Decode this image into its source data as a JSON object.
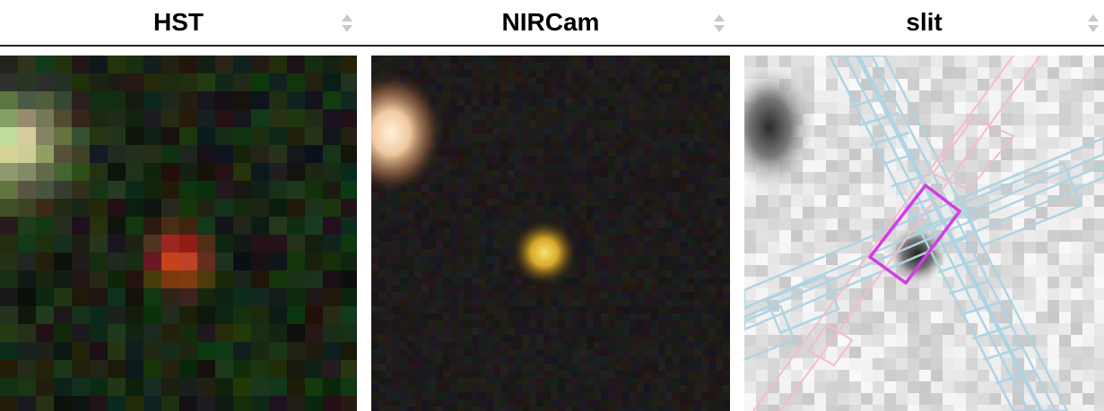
{
  "table": {
    "columns": [
      {
        "label": "HST",
        "sort_icon": "sort-updown-icon"
      },
      {
        "label": "NIRCam",
        "sort_icon": "sort-updown-icon"
      },
      {
        "label": "slit",
        "sort_icon": "sort-updown-icon"
      }
    ]
  },
  "images": {
    "hst": {
      "kind": "hst-rgb-cutout"
    },
    "nircam": {
      "kind": "nircam-rgb-cutout"
    },
    "slit": {
      "kind": "greyscale-cutout-with-slit-footprints"
    }
  },
  "colors": {
    "header_border": "#222222",
    "sort_icon": "#c8c8c8",
    "slit_footprint": "#aed4e4",
    "slit_footprint_alt": "#f3bccd",
    "selected_slit": "#d43be6",
    "source_nircam": "#e8c23a",
    "source_hst": "#d9332b"
  }
}
